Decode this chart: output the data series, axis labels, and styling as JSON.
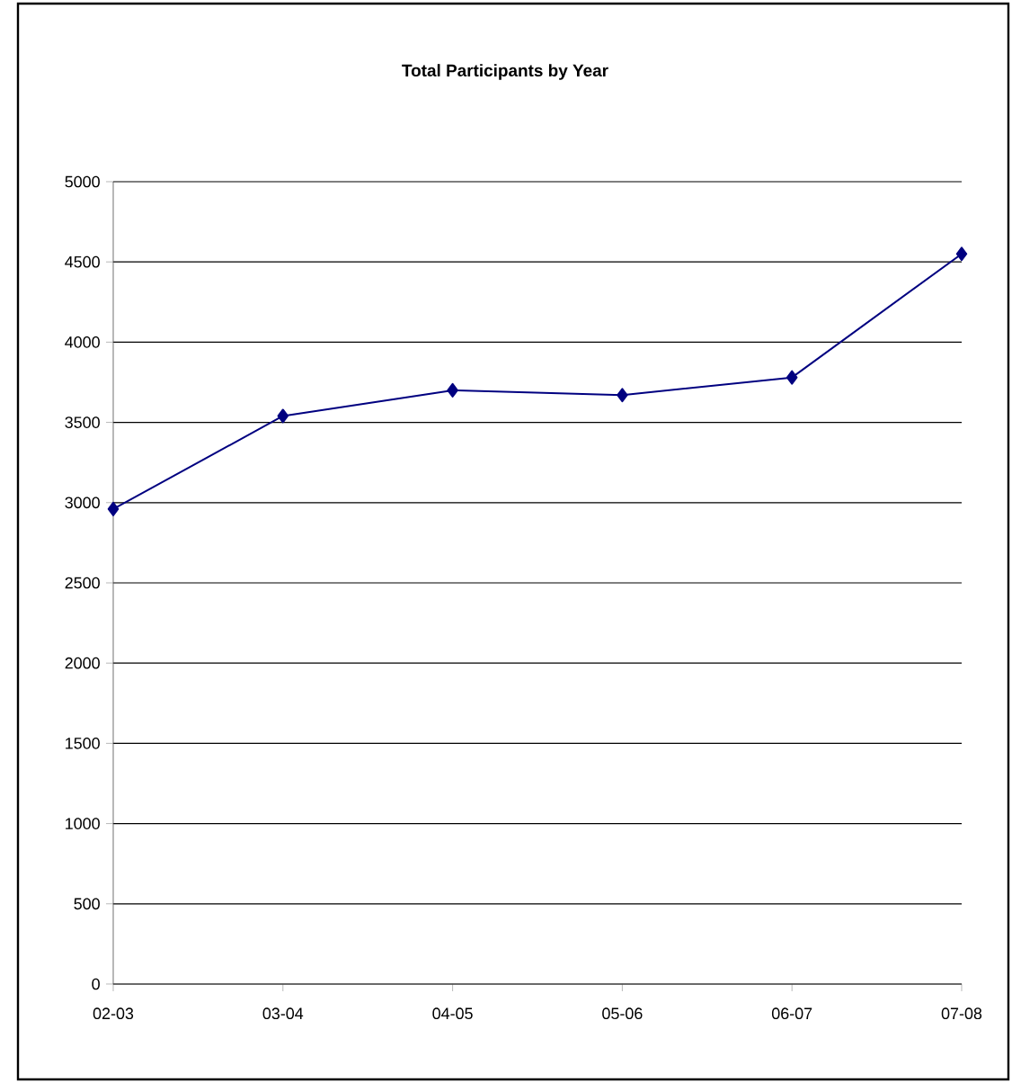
{
  "chart_data": {
    "type": "line",
    "title": "Total Participants by Year",
    "categories": [
      "02-03",
      "03-04",
      "04-05",
      "05-06",
      "06-07",
      "07-08"
    ],
    "series": [
      {
        "color": "#000080",
        "values": [
          2960,
          3540,
          3700,
          3670,
          3780,
          4550
        ]
      }
    ],
    "ylim": [
      0,
      5000
    ],
    "yticks": [
      0,
      500,
      1000,
      1500,
      2000,
      2500,
      3000,
      3500,
      4000,
      4500,
      5000
    ],
    "grid": "y",
    "marker": "diamond",
    "line_style": "solid"
  }
}
